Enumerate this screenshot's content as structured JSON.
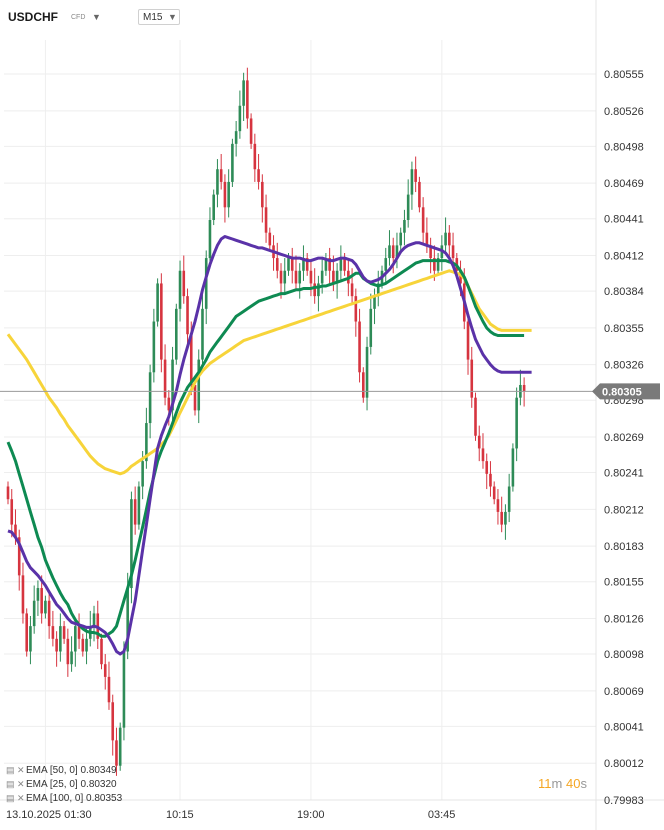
{
  "header": {
    "symbol": "USDCHF",
    "instrument_type": "CFD",
    "timeframe": "M15"
  },
  "timer": {
    "minutes": "11",
    "minutes_unit": "m",
    "seconds": "40",
    "seconds_unit": "s"
  },
  "legend": [
    {
      "label": "EMA [50, 0] 0.80349",
      "color": "#0e8a52"
    },
    {
      "label": "EMA [25, 0] 0.80320",
      "color": "#5a32a8"
    },
    {
      "label": "EMA [100, 0] 0.80353",
      "color": "#f7d43a"
    }
  ],
  "colors": {
    "up": "#2e8b57",
    "down": "#d6343f",
    "ema50": "#0e8a52",
    "ema25": "#5a32a8",
    "ema100": "#f7d43a",
    "price_tag": "#7a7a7a"
  },
  "chart_data": {
    "type": "candlestick",
    "ylim": [
      0.79983,
      0.8057
    ],
    "y_ticks": [
      "0.80555",
      "0.80526",
      "0.80498",
      "0.80469",
      "0.80441",
      "0.80412",
      "0.80384",
      "0.80355",
      "0.80326",
      "0.80298",
      "0.80269",
      "0.80241",
      "0.80212",
      "0.80183",
      "0.80155",
      "0.80126",
      "0.80098",
      "0.80069",
      "0.80041",
      "0.80012",
      "0.79983"
    ],
    "x_labels": [
      {
        "label": "13.10.2025  01:30",
        "index": 10
      },
      {
        "label": "10:15",
        "index": 46
      },
      {
        "label": "19:00",
        "index": 81
      },
      {
        "label": "03:45",
        "index": 116
      }
    ],
    "current_price": 0.80305,
    "current_price_label": "0.80305",
    "close": [
      0.8022,
      0.802,
      0.8019,
      0.8016,
      0.8013,
      0.801,
      0.8012,
      0.8014,
      0.8015,
      0.8013,
      0.8014,
      0.8012,
      0.8011,
      0.801,
      0.8012,
      0.8011,
      0.8009,
      0.801,
      0.8012,
      0.8011,
      0.801,
      0.8011,
      0.8012,
      0.8013,
      0.8011,
      0.8009,
      0.8008,
      0.8006,
      0.8003,
      0.8001,
      0.8004,
      0.801,
      0.8015,
      0.8022,
      0.802,
      0.8023,
      0.8025,
      0.8028,
      0.8032,
      0.8036,
      0.8039,
      0.8033,
      0.803,
      0.8029,
      0.8033,
      0.8037,
      0.804,
      0.8038,
      0.8035,
      0.8031,
      0.8029,
      0.8033,
      0.8037,
      0.8041,
      0.8044,
      0.8046,
      0.8048,
      0.8047,
      0.8045,
      0.8047,
      0.805,
      0.8051,
      0.8053,
      0.8055,
      0.8052,
      0.805,
      0.8048,
      0.8047,
      0.8045,
      0.8043,
      0.8042,
      0.8041,
      0.804,
      0.8039,
      0.804,
      0.8041,
      0.804,
      0.8039,
      0.804,
      0.8041,
      0.804,
      0.8039,
      0.8038,
      0.8039,
      0.804,
      0.8041,
      0.804,
      0.8039,
      0.804,
      0.8041,
      0.804,
      0.8039,
      0.8038,
      0.8036,
      0.8032,
      0.803,
      0.8034,
      0.8037,
      0.8038,
      0.8039,
      0.804,
      0.8041,
      0.8042,
      0.8041,
      0.8042,
      0.8043,
      0.8044,
      0.8046,
      0.8048,
      0.8047,
      0.8045,
      0.8043,
      0.8042,
      0.8041,
      0.804,
      0.8041,
      0.8042,
      0.8043,
      0.8042,
      0.8041,
      0.804,
      0.8039,
      0.8036,
      0.8033,
      0.803,
      0.8027,
      0.8026,
      0.8025,
      0.8024,
      0.8023,
      0.8022,
      0.8021,
      0.802,
      0.8021,
      0.8023,
      0.8026,
      0.803,
      0.8031,
      0.80305
    ],
    "series": [
      {
        "name": "EMA [50, 0]",
        "values": [
          0.80265,
          0.80258,
          0.8025,
          0.8024,
          0.8023,
          0.8022,
          0.8021,
          0.802,
          0.8019,
          0.80182,
          0.80172,
          0.80165,
          0.80158,
          0.80152,
          0.80146,
          0.80141,
          0.80137,
          0.8013,
          0.80125,
          0.80121,
          0.80118,
          0.80116,
          0.80115,
          0.80115,
          0.80114,
          0.80112,
          0.80112,
          0.80114,
          0.80116,
          0.8012,
          0.8013,
          0.8014,
          0.8015,
          0.8016,
          0.80172,
          0.80185,
          0.80198,
          0.80212,
          0.80226,
          0.80238,
          0.8025,
          0.80258,
          0.80265,
          0.80272,
          0.8028,
          0.80288,
          0.80296,
          0.80302,
          0.80308,
          0.80312,
          0.80316,
          0.8032,
          0.80325,
          0.8033,
          0.80336,
          0.8034,
          0.80344,
          0.80348,
          0.80352,
          0.80356,
          0.8036,
          0.80364,
          0.80366,
          0.80368,
          0.8037,
          0.80372,
          0.80374,
          0.80376,
          0.80377,
          0.80378,
          0.80379,
          0.8038,
          0.80381,
          0.80382,
          0.80382,
          0.80383,
          0.80384,
          0.80385,
          0.80385,
          0.80386,
          0.80386,
          0.80386,
          0.80387,
          0.80387,
          0.80388,
          0.80388,
          0.80389,
          0.8039,
          0.80391,
          0.80392,
          0.80393,
          0.80394,
          0.80396,
          0.80398,
          0.80398,
          0.80394,
          0.80392,
          0.8039,
          0.80389,
          0.80388,
          0.80389,
          0.8039,
          0.80392,
          0.80394,
          0.80396,
          0.80398,
          0.804,
          0.80402,
          0.80404,
          0.80406,
          0.80407,
          0.80408,
          0.80408,
          0.80408,
          0.80408,
          0.80408,
          0.80408,
          0.80408,
          0.80407,
          0.80406,
          0.80404,
          0.804,
          0.80395,
          0.80388,
          0.8038,
          0.80372,
          0.80366,
          0.8036,
          0.80355,
          0.80352,
          0.8035,
          0.80349,
          0.80349,
          0.80349,
          0.80349,
          0.80349,
          0.80349,
          0.80349,
          0.80349
        ]
      },
      {
        "name": "EMA [25, 0]",
        "values": [
          0.80195,
          0.80194,
          0.8019,
          0.80185,
          0.80178,
          0.80171,
          0.80166,
          0.80163,
          0.8016,
          0.80156,
          0.80152,
          0.80147,
          0.80142,
          0.80137,
          0.80134,
          0.8013,
          0.80126,
          0.80123,
          0.80122,
          0.80121,
          0.8012,
          0.80119,
          0.80119,
          0.8012,
          0.80119,
          0.80117,
          0.80115,
          0.80111,
          0.80106,
          0.801,
          0.80098,
          0.801,
          0.8011,
          0.80125,
          0.8014,
          0.8016,
          0.8018,
          0.802,
          0.8022,
          0.8024,
          0.8026,
          0.8027,
          0.80278,
          0.80285,
          0.80295,
          0.80305,
          0.80318,
          0.8033,
          0.8034,
          0.8035,
          0.8036,
          0.80372,
          0.80385,
          0.80395,
          0.80405,
          0.80413,
          0.8042,
          0.80425,
          0.80427,
          0.80426,
          0.80425,
          0.80424,
          0.80423,
          0.80422,
          0.80421,
          0.8042,
          0.80419,
          0.80418,
          0.80418,
          0.80417,
          0.80416,
          0.80415,
          0.80414,
          0.80413,
          0.80412,
          0.80411,
          0.8041,
          0.8041,
          0.8041,
          0.80409,
          0.80408,
          0.80408,
          0.80409,
          0.8041,
          0.8041,
          0.80409,
          0.80408,
          0.80408,
          0.80409,
          0.8041,
          0.8041,
          0.80409,
          0.80408,
          0.80405,
          0.804,
          0.80395,
          0.80392,
          0.80391,
          0.80392,
          0.80393,
          0.80395,
          0.80398,
          0.80401,
          0.80405,
          0.8041,
          0.80415,
          0.80418,
          0.8042,
          0.80421,
          0.80422,
          0.80422,
          0.80421,
          0.8042,
          0.80419,
          0.80418,
          0.80417,
          0.80416,
          0.80414,
          0.8041,
          0.80404,
          0.80396,
          0.80386,
          0.80376,
          0.80365,
          0.80355,
          0.80346,
          0.8034,
          0.80334,
          0.8033,
          0.80326,
          0.80323,
          0.80321,
          0.8032,
          0.8032,
          0.8032,
          0.8032,
          0.8032,
          0.8032,
          0.8032,
          0.8032,
          0.8032
        ]
      },
      {
        "name": "EMA [100, 0]",
        "values": [
          0.8035,
          0.80346,
          0.80342,
          0.80338,
          0.80334,
          0.8033,
          0.80325,
          0.8032,
          0.80315,
          0.8031,
          0.80305,
          0.803,
          0.80296,
          0.80292,
          0.80287,
          0.80283,
          0.80278,
          0.80274,
          0.8027,
          0.80266,
          0.80262,
          0.80258,
          0.80254,
          0.80251,
          0.80248,
          0.80246,
          0.80244,
          0.80243,
          0.80242,
          0.80241,
          0.8024,
          0.80241,
          0.80243,
          0.80246,
          0.80248,
          0.8025,
          0.80252,
          0.80254,
          0.80256,
          0.80258,
          0.8026,
          0.80263,
          0.80266,
          0.8027,
          0.80276,
          0.80282,
          0.80288,
          0.80294,
          0.803,
          0.80306,
          0.80312,
          0.80317,
          0.80321,
          0.80324,
          0.80327,
          0.80329,
          0.80331,
          0.80333,
          0.80335,
          0.80337,
          0.80339,
          0.80341,
          0.80343,
          0.80345,
          0.80346,
          0.80347,
          0.80348,
          0.80349,
          0.8035,
          0.80351,
          0.80352,
          0.80353,
          0.80354,
          0.80355,
          0.80356,
          0.80357,
          0.80358,
          0.80359,
          0.8036,
          0.80361,
          0.80362,
          0.80363,
          0.80364,
          0.80365,
          0.80366,
          0.80367,
          0.80368,
          0.80369,
          0.8037,
          0.80371,
          0.80372,
          0.80373,
          0.80374,
          0.80375,
          0.80376,
          0.80377,
          0.80378,
          0.80379,
          0.8038,
          0.80381,
          0.80382,
          0.80383,
          0.80384,
          0.80385,
          0.80386,
          0.80387,
          0.80388,
          0.80389,
          0.8039,
          0.80391,
          0.80392,
          0.80393,
          0.80394,
          0.80395,
          0.80396,
          0.80397,
          0.80398,
          0.80399,
          0.804,
          0.80399,
          0.80398,
          0.80397,
          0.80394,
          0.80388,
          0.80382,
          0.80376,
          0.8037,
          0.80366,
          0.80362,
          0.80358,
          0.80356,
          0.80354,
          0.80353,
          0.80353,
          0.80353,
          0.80353,
          0.80353,
          0.80353,
          0.80353,
          0.80353,
          0.80353
        ]
      }
    ],
    "legend_position": "bottom-left",
    "grid": true
  }
}
